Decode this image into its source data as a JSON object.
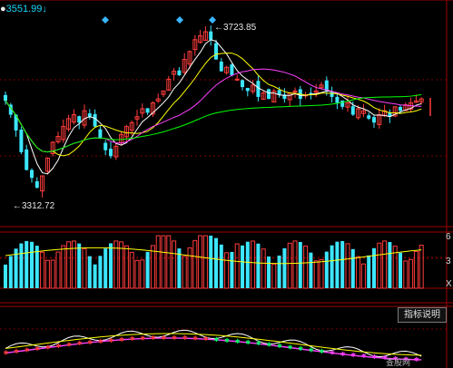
{
  "header": {
    "price": "3551.99",
    "arrow": "↓"
  },
  "price_chart": {
    "high_label": "3723.85",
    "low_label": "3312.72"
  },
  "volume_panel": {
    "right_ticks": [
      "6",
      "3",
      "X"
    ]
  },
  "indicator_panel": {
    "button_label": "指标说明"
  },
  "watermark": "查股网",
  "colors": {
    "up": "#ff3c3c",
    "down": "#3ce6ff",
    "ma5": "#ffffff",
    "ma10": "#ffff00",
    "ma20": "#ff40ff",
    "ma60": "#00ff00",
    "grid": "#a00000"
  },
  "icons": {
    "signal_marker": "cyan-diamond-icon"
  }
}
